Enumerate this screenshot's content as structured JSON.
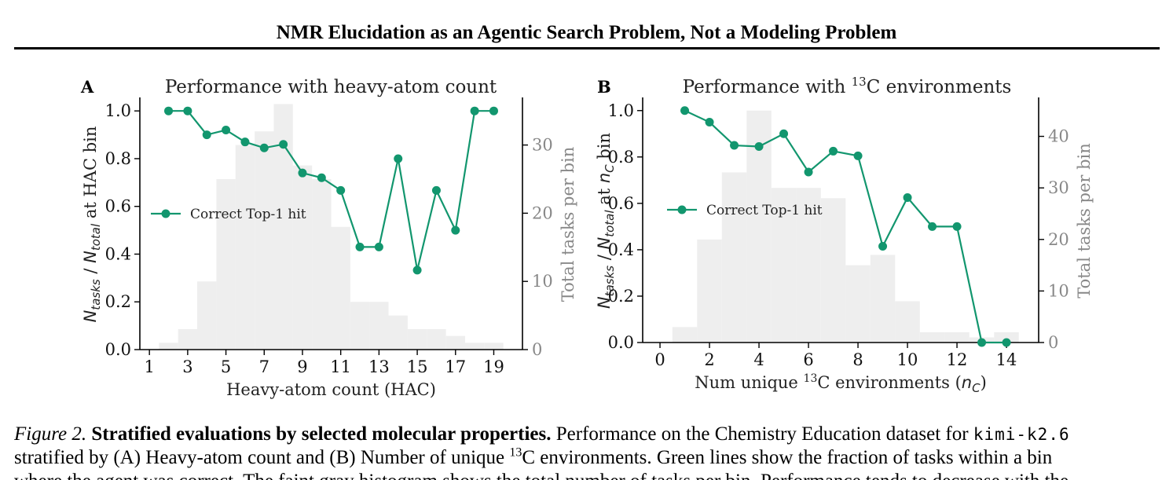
{
  "header": {
    "title": "NMR Elucidation as an Agentic Search Problem, Not a Modeling Problem"
  },
  "colors": {
    "line": "#12966e",
    "hist": "#eeeeee",
    "axis": "#000000",
    "secondary_axis": "#888888"
  },
  "chart_data": [
    {
      "panel": "A",
      "type": "line",
      "title": "Performance with heavy-atom count",
      "xlabel": "Heavy-atom count (HAC)",
      "ylabel": {
        "n1": "N",
        "s1": "tasks",
        "sep": " / ",
        "n2": "N",
        "s2": "total",
        "rest": " at HAC bin"
      },
      "y2label": "Total tasks per bin",
      "xlim": [
        0.5,
        20.5
      ],
      "ylim": [
        0.0,
        1.05
      ],
      "y2lim": [
        0,
        36.75
      ],
      "xticks": [
        1,
        3,
        5,
        7,
        9,
        11,
        13,
        15,
        17,
        19
      ],
      "yticks": [
        0.0,
        0.2,
        0.4,
        0.6,
        0.8,
        1.0
      ],
      "y2ticks": [
        0,
        10,
        20,
        30
      ],
      "legend": {
        "label": "Correct Top-1 hit",
        "placement": "center-left"
      },
      "series": [
        {
          "name": "Correct Top-1 hit",
          "x": [
            2,
            3,
            4,
            5,
            6,
            7,
            8,
            9,
            10,
            11,
            12,
            13,
            14,
            15,
            16,
            17,
            18,
            19
          ],
          "y": [
            1.0,
            1.0,
            0.9,
            0.92,
            0.87,
            0.845,
            0.86,
            0.74,
            0.72,
            0.667,
            0.43,
            0.43,
            0.8,
            0.333,
            0.667,
            0.5,
            1.0,
            1.0
          ]
        }
      ],
      "histogram": {
        "name": "Total tasks per bin",
        "bin_edges": [
          1.5,
          2.5,
          3.5,
          4.5,
          5.5,
          6.5,
          7.5,
          8.5,
          9.5,
          10.5,
          11.5,
          12.5,
          13.5,
          14.5,
          15.5,
          16.5,
          17.5,
          18.5,
          19.5
        ],
        "counts": [
          1,
          3,
          10,
          25,
          30,
          32,
          36,
          27,
          25,
          18,
          7,
          7,
          5,
          3,
          3,
          2,
          1,
          1
        ]
      }
    },
    {
      "panel": "B",
      "type": "line",
      "title": {
        "pre": "Performance with ",
        "sup": "13",
        "post": "C environments"
      },
      "xlabel": {
        "pre": "Num unique ",
        "sup": "13",
        "post": "C environments (",
        "sym": "n",
        "sub": "C",
        "end": ")"
      },
      "ylabel": {
        "n1": "N",
        "s1": "tasks",
        "sep": " / ",
        "n2": "N",
        "s2": "total",
        "rest": " at ",
        "n3": "n",
        "s3": "C",
        "end": " bin"
      },
      "y2label": "Total tasks per bin",
      "xlim": [
        -0.7,
        15.3
      ],
      "ylim": [
        0.0,
        1.05
      ],
      "y2lim": [
        0,
        47.25
      ],
      "xticks": [
        0,
        2,
        4,
        6,
        8,
        10,
        12,
        14
      ],
      "yticks": [
        0.0,
        0.2,
        0.4,
        0.6,
        0.8,
        1.0
      ],
      "y2ticks": [
        0,
        10,
        20,
        30,
        40
      ],
      "legend": {
        "label": "Correct Top-1 hit",
        "placement": "center-left"
      },
      "series": [
        {
          "name": "Correct Top-1 hit",
          "x": [
            1,
            2,
            3,
            4,
            5,
            6,
            7,
            8,
            9,
            10,
            11,
            12,
            13,
            14
          ],
          "y": [
            1.0,
            0.95,
            0.85,
            0.845,
            0.9,
            0.735,
            0.825,
            0.805,
            0.415,
            0.625,
            0.5,
            0.5,
            0.0,
            0.0
          ]
        }
      ],
      "histogram": {
        "name": "Total tasks per bin",
        "bin_edges": [
          0.5,
          1.5,
          2.5,
          3.5,
          4.5,
          5.5,
          6.5,
          7.5,
          8.5,
          9.5,
          10.5,
          11.5,
          12.5,
          13.5,
          14.5
        ],
        "counts": [
          3,
          20,
          33,
          45,
          30,
          30,
          28,
          15,
          17,
          8,
          2,
          2,
          1,
          2
        ]
      }
    }
  ],
  "caption": {
    "fig_label": "Figure 2.",
    "bold_title": "Stratified evaluations by selected molecular properties.",
    "line1_text": "Performance on the Chemistry Education dataset for",
    "model_name": "kimi-k2.6",
    "line2_pre": "stratified by (A) Heavy-atom count and (B) Number of unique",
    "line2_sup": "13",
    "line2_post": "C environments. Green lines show the fraction of tasks within a bin",
    "line3": "where the agent was correct. The faint gray histogram shows the total number of tasks per bin. Performance tends to decrease with the"
  }
}
